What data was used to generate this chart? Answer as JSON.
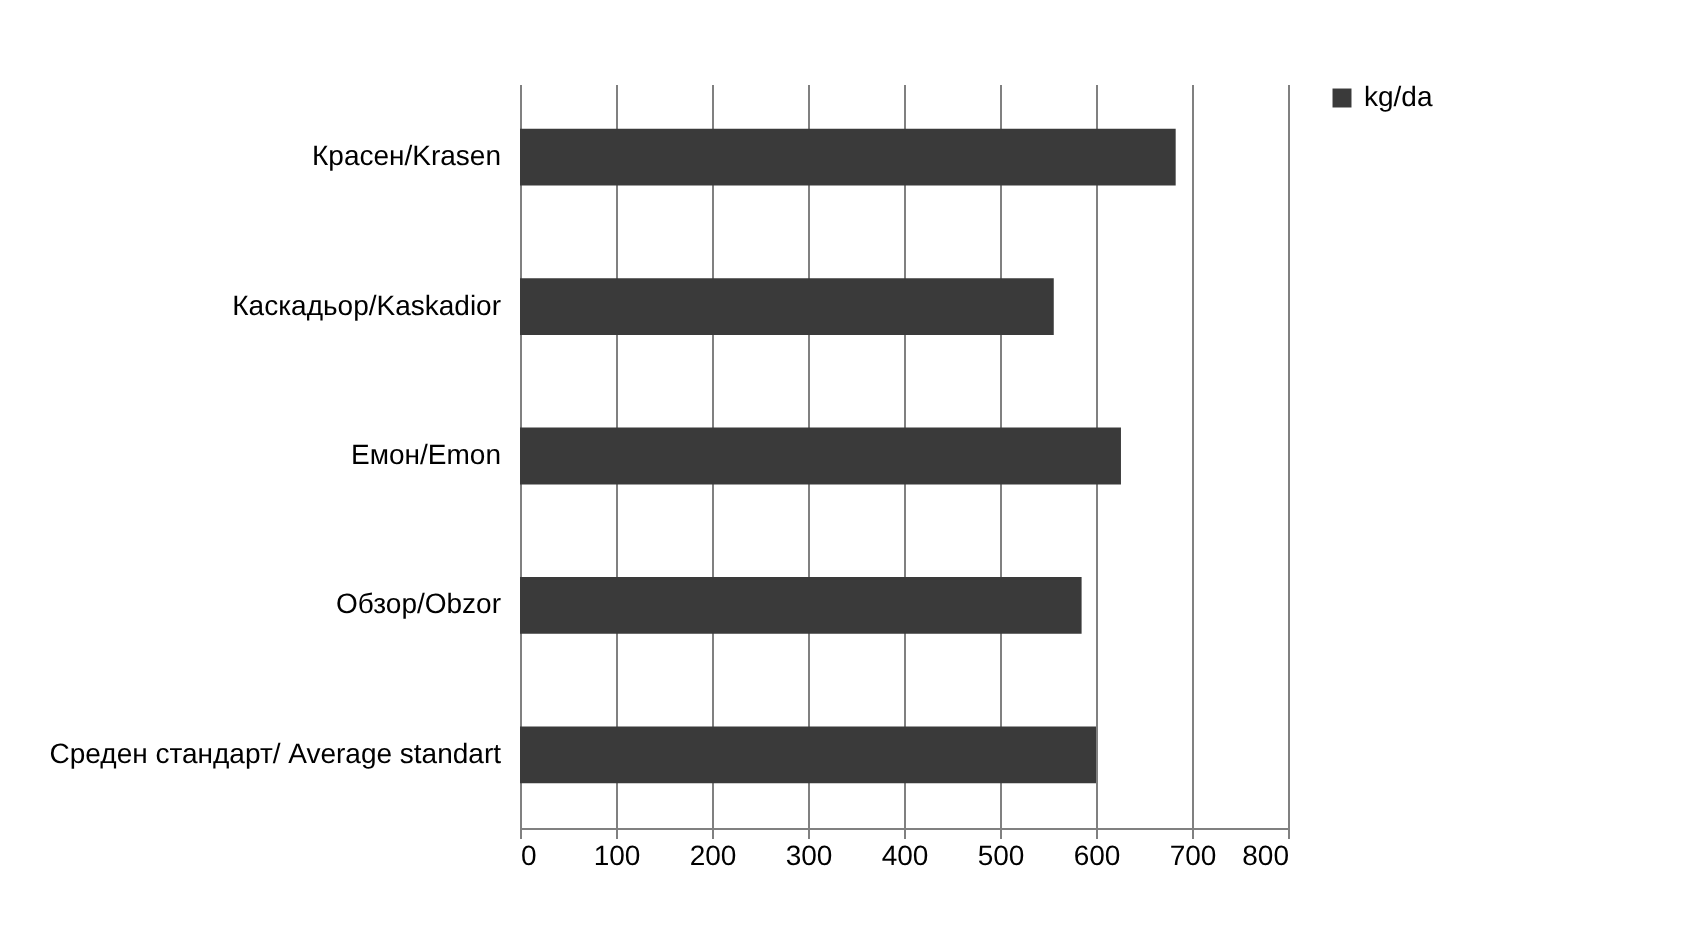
{
  "chart_data": {
    "type": "bar",
    "orientation": "horizontal",
    "categories": [
      "Красен/Krasen",
      "Каскадьор/Kaskadior",
      "Емон/Emon",
      "Обзор/Obzor",
      "Среден стандарт/  Average standart"
    ],
    "series": [
      {
        "name": "kg/da",
        "color": "#3a3a3a",
        "values": [
          683,
          556,
          626,
          585,
          600
        ]
      }
    ],
    "xlim": [
      0,
      800
    ],
    "xticks": [
      0,
      100,
      200,
      300,
      400,
      500,
      600,
      700,
      800
    ],
    "grid": "x",
    "legend": "right"
  }
}
